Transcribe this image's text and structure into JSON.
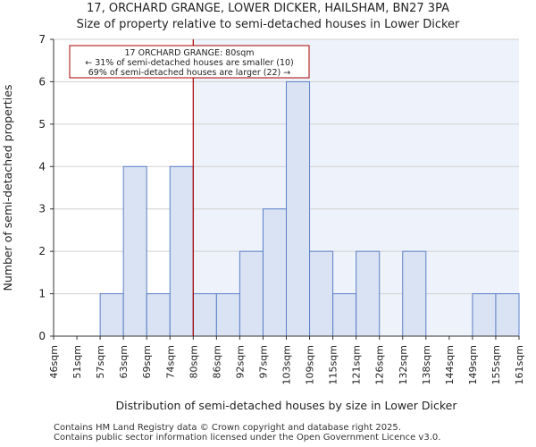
{
  "chart_data": {
    "type": "histogram",
    "title": "17, ORCHARD GRANGE, LOWER DICKER, HAILSHAM, BN27 3PA",
    "subtitle": "Size of property relative to semi-detached houses in Lower Dicker",
    "xlabel": "Distribution of semi-detached houses by size in Lower Dicker",
    "ylabel": "Number of semi-detached properties",
    "ylim": [
      0,
      7
    ],
    "yticks": [
      0,
      1,
      2,
      3,
      4,
      5,
      6,
      7
    ],
    "categories": [
      "46sqm",
      "51sqm",
      "57sqm",
      "63sqm",
      "69sqm",
      "74sqm",
      "80sqm",
      "86sqm",
      "92sqm",
      "97sqm",
      "103sqm",
      "109sqm",
      "115sqm",
      "121sqm",
      "126sqm",
      "132sqm",
      "138sqm",
      "144sqm",
      "149sqm",
      "155sqm",
      "161sqm"
    ],
    "values": [
      0,
      0,
      1,
      4,
      1,
      4,
      1,
      1,
      2,
      3,
      6,
      2,
      1,
      2,
      0,
      2,
      0,
      0,
      1,
      1
    ],
    "marker": {
      "value_label": "80sqm",
      "bin_index": 6,
      "color": "#aa0000"
    },
    "annotation": {
      "line1": "17 ORCHARD GRANGE: 80sqm",
      "line2": "← 31% of semi-detached houses are smaller (10)",
      "line3": "69% of semi-detached houses are larger (22) →"
    },
    "bar_color": "#dae3f3",
    "bar_edge": "#5b7fc7",
    "highlight_bg": "#eef2fb"
  },
  "footer": {
    "line1": "Contains HM Land Registry data © Crown copyright and database right 2025.",
    "line2": "Contains public sector information licensed under the Open Government Licence v3.0."
  }
}
